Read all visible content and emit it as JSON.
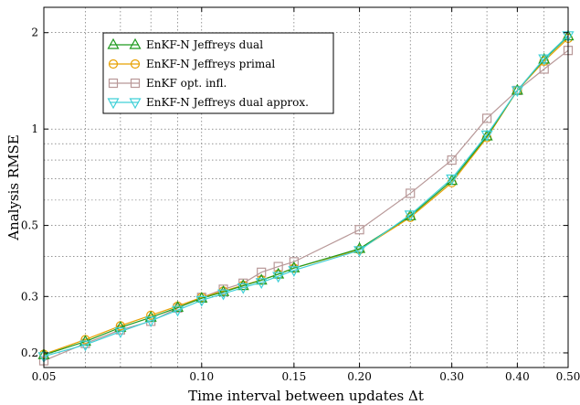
{
  "chart_data": {
    "type": "line",
    "xlabel": "Time interval between updates Δt",
    "ylabel": "Analysis RMSE",
    "xscale": "log",
    "yscale": "log",
    "xlim": [
      0.05,
      0.5
    ],
    "ylim": [
      0.18,
      2.4
    ],
    "xticks": [
      0.05,
      0.1,
      0.15,
      0.2,
      0.3,
      0.4,
      0.5
    ],
    "xtick_labels": [
      "0.05",
      "0.10",
      "0.15",
      "0.20",
      "0.30",
      "0.40",
      "0.50"
    ],
    "yticks": [
      0.2,
      0.3,
      0.5,
      1,
      2
    ],
    "ytick_labels": [
      "0.2",
      "0.3",
      "0.5",
      "1",
      "2"
    ],
    "grid": true,
    "legend_position": "top-left",
    "series": [
      {
        "name": "EnKF-N Jeffreys dual",
        "color": "#1f9a1f",
        "marker": "triangle-up",
        "x": [
          0.05,
          0.06,
          0.07,
          0.08,
          0.09,
          0.1,
          0.11,
          0.12,
          0.13,
          0.14,
          0.15,
          0.2,
          0.25,
          0.3,
          0.35,
          0.4,
          0.45,
          0.5
        ],
        "y": [
          0.197,
          0.217,
          0.24,
          0.258,
          0.277,
          0.296,
          0.31,
          0.324,
          0.337,
          0.352,
          0.368,
          0.423,
          0.535,
          0.69,
          0.95,
          1.32,
          1.65,
          1.95
        ]
      },
      {
        "name": "EnKF-N Jeffreys primal",
        "color": "#e8a000",
        "marker": "circle",
        "x": [
          0.05,
          0.06,
          0.07,
          0.08,
          0.09,
          0.1,
          0.11,
          0.12,
          0.13,
          0.14,
          0.15,
          0.2,
          0.25,
          0.3,
          0.35,
          0.4,
          0.45,
          0.5
        ],
        "y": [
          0.198,
          0.22,
          0.243,
          0.262,
          0.28,
          0.298,
          0.312,
          0.325,
          0.338,
          0.352,
          0.368,
          0.42,
          0.53,
          0.68,
          0.94,
          1.32,
          1.63,
          1.92
        ]
      },
      {
        "name": "EnKF opt. infl.",
        "color": "#b89898",
        "marker": "square",
        "x": [
          0.05,
          0.06,
          0.07,
          0.08,
          0.09,
          0.1,
          0.11,
          0.12,
          0.13,
          0.14,
          0.15,
          0.2,
          0.25,
          0.3,
          0.35,
          0.4,
          0.45,
          0.5
        ],
        "y": [
          0.189,
          0.214,
          0.236,
          0.251,
          0.276,
          0.298,
          0.316,
          0.33,
          0.357,
          0.372,
          0.385,
          0.485,
          0.63,
          0.8,
          1.08,
          1.32,
          1.54,
          1.76
        ]
      },
      {
        "name": "EnKF-N Jeffreys dual approx.",
        "color": "#40d0d8",
        "marker": "triangle-down",
        "x": [
          0.05,
          0.06,
          0.07,
          0.08,
          0.09,
          0.1,
          0.11,
          0.12,
          0.13,
          0.14,
          0.15,
          0.2,
          0.25,
          0.3,
          0.35,
          0.4,
          0.45,
          0.5
        ],
        "y": [
          0.195,
          0.212,
          0.233,
          0.252,
          0.272,
          0.292,
          0.306,
          0.32,
          0.332,
          0.347,
          0.362,
          0.418,
          0.54,
          0.7,
          0.96,
          1.32,
          1.66,
          1.96
        ]
      }
    ]
  }
}
